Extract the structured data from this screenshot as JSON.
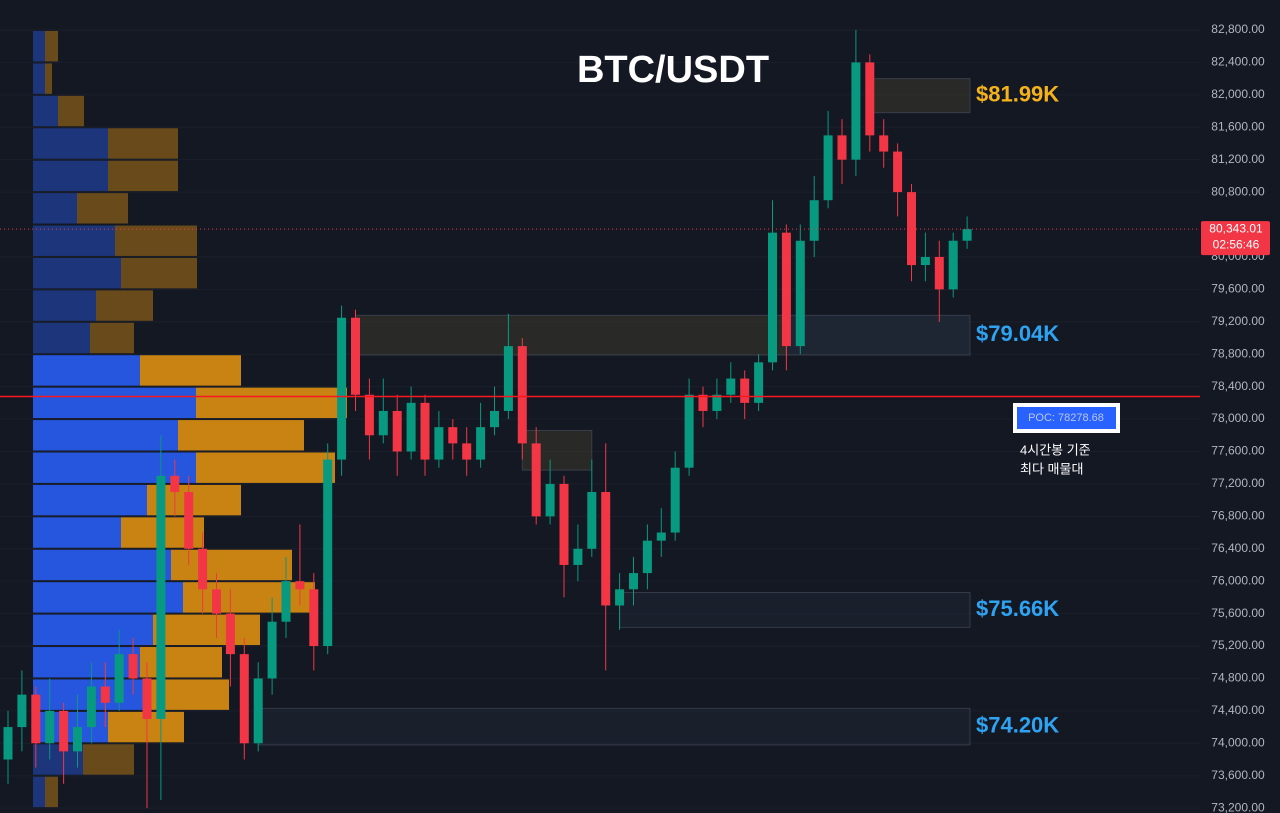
{
  "chart_data": {
    "type": "candlestick",
    "title": "BTC/USDT",
    "ylim": [
      73140,
      83170
    ],
    "yticks": [
      {
        "value": 73200,
        "label": "73,200.00"
      },
      {
        "value": 73600,
        "label": "73,600.00"
      },
      {
        "value": 74000,
        "label": "74,000.00"
      },
      {
        "value": 74400,
        "label": "74,400.00"
      },
      {
        "value": 74800,
        "label": "74,800.00"
      },
      {
        "value": 75200,
        "label": "75,200.00"
      },
      {
        "value": 75600,
        "label": "75,600.00"
      },
      {
        "value": 76000,
        "label": "76,000.00"
      },
      {
        "value": 76400,
        "label": "76,400.00"
      },
      {
        "value": 76800,
        "label": "76,800.00"
      },
      {
        "value": 77200,
        "label": "77,200.00"
      },
      {
        "value": 77600,
        "label": "77,600.00"
      },
      {
        "value": 78000,
        "label": "78,000.00"
      },
      {
        "value": 78400,
        "label": "78,400.00"
      },
      {
        "value": 78800,
        "label": "78,800.00"
      },
      {
        "value": 79200,
        "label": "79,200.00"
      },
      {
        "value": 79600,
        "label": "79,600.00"
      },
      {
        "value": 80000,
        "label": "80,000.00"
      },
      {
        "value": 80800,
        "label": "80,800.00"
      },
      {
        "value": 81200,
        "label": "81,200.00"
      },
      {
        "value": 81600,
        "label": "81,600.00"
      },
      {
        "value": 82000,
        "label": "82,000.00"
      },
      {
        "value": 82400,
        "label": "82,400.00"
      },
      {
        "value": 82800,
        "label": "82,800.00"
      }
    ],
    "grid": true,
    "up_color": "#089981",
    "down_color": "#f23645",
    "candles": {
      "open": [
        73800,
        74200,
        74600,
        74000,
        74400,
        73900,
        74200,
        74700,
        74500,
        75100,
        74800,
        74300,
        77300,
        77100,
        76400,
        75900,
        75600,
        75100,
        74000,
        74800,
        75500,
        76000,
        75900,
        75200,
        77500,
        79250,
        78300,
        77800,
        78100,
        77600,
        78200,
        77500,
        77900,
        77700,
        77500,
        77900,
        78100,
        78900,
        77700,
        76800,
        77200,
        76200,
        76400,
        77100,
        75700,
        75900,
        76100,
        76500,
        76600,
        77400,
        78300,
        78100,
        78300,
        78500,
        78200,
        78700,
        80300,
        78900,
        80200,
        80700,
        81500,
        81200,
        82400,
        81500,
        81300,
        80800,
        79900,
        80000,
        79600,
        80200
      ],
      "high": [
        74400,
        74900,
        74700,
        74800,
        74500,
        74600,
        75000,
        75000,
        75400,
        75300,
        75000,
        77800,
        77500,
        77300,
        76600,
        76100,
        75900,
        75300,
        75000,
        75800,
        76300,
        76700,
        76100,
        77700,
        79400,
        79350,
        78500,
        78500,
        78300,
        78400,
        78300,
        78100,
        78000,
        77900,
        78200,
        78400,
        79300,
        79000,
        77900,
        77500,
        77300,
        76700,
        77500,
        77700,
        76100,
        76300,
        76700,
        76900,
        77600,
        78500,
        78400,
        78500,
        78700,
        78600,
        78800,
        80700,
        80400,
        80400,
        81000,
        81800,
        81700,
        82800,
        82500,
        81700,
        81400,
        80900,
        80300,
        80200,
        80300,
        80500
      ],
      "low": [
        73500,
        73900,
        73700,
        73800,
        73500,
        73700,
        74000,
        74200,
        74400,
        74600,
        73200,
        73300,
        76800,
        76200,
        75600,
        75300,
        74700,
        73800,
        73900,
        74600,
        75300,
        75700,
        74900,
        75100,
        77300,
        78100,
        77500,
        77700,
        77300,
        77500,
        77300,
        77400,
        77500,
        77300,
        77400,
        77800,
        78000,
        77500,
        76700,
        76700,
        75800,
        76000,
        76300,
        74900,
        75400,
        75700,
        75900,
        76300,
        76500,
        77300,
        77900,
        78000,
        78200,
        78000,
        78100,
        78600,
        78600,
        78800,
        80000,
        80600,
        80900,
        81000,
        81300,
        81100,
        80500,
        79700,
        79700,
        79200,
        79500,
        80100
      ],
      "close": [
        74200,
        74600,
        74000,
        74400,
        73900,
        74200,
        74700,
        74500,
        75100,
        74800,
        74300,
        77300,
        77100,
        76400,
        75900,
        75600,
        75100,
        74000,
        74800,
        75500,
        76000,
        75900,
        75200,
        77500,
        79250,
        78300,
        77800,
        78100,
        77600,
        78200,
        77500,
        77900,
        77700,
        77500,
        77900,
        78100,
        78900,
        77700,
        76800,
        77200,
        76200,
        76400,
        77100,
        75700,
        75900,
        76100,
        76500,
        76600,
        77400,
        78300,
        78100,
        78300,
        78500,
        78200,
        78700,
        80300,
        78900,
        80200,
        80700,
        81500,
        81200,
        82400,
        81500,
        81300,
        80800,
        79900,
        80000,
        79600,
        80200,
        80343.01
      ]
    },
    "volume_profile": {
      "bins": [
        82800,
        82400,
        82000,
        81600,
        81200,
        80800,
        80400,
        80000,
        79600,
        79200,
        78800,
        78400,
        78000,
        77600,
        77200,
        76800,
        76400,
        76000,
        75600,
        75200,
        74800,
        74400,
        74000,
        73600,
        73200
      ],
      "buy": [
        12,
        12,
        25,
        75,
        75,
        44,
        82,
        88,
        63,
        57,
        107,
        163,
        145,
        163,
        114,
        88,
        138,
        150,
        120,
        107,
        114,
        75,
        50,
        12
      ],
      "sell": [
        13,
        7,
        26,
        70,
        70,
        51,
        82,
        76,
        57,
        44,
        101,
        151,
        126,
        139,
        94,
        83,
        121,
        132,
        107,
        82,
        82,
        76,
        51,
        13
      ],
      "value_area": [
        74000,
        78800
      ],
      "buy_color": "#2962ff",
      "sell_color": "#e8960f"
    },
    "zones": [
      {
        "label": "$81.99K",
        "low": 81780,
        "high": 82200,
        "start": 62,
        "color": "#f5b21b",
        "fill": "#3a3a2c"
      },
      {
        "low": 78790,
        "high": 79280,
        "start": 25,
        "end": 56,
        "fill": "#3a3a2c"
      },
      {
        "label": "$79.04K",
        "low": 78790,
        "high": 79280,
        "start": 56,
        "color": "#2ea3f2",
        "fill": "#263142"
      },
      {
        "low": 77370,
        "high": 77860,
        "start": 37,
        "end": 42,
        "fill": "#3a3a2c"
      },
      {
        "label": "$75.66K",
        "low": 75430,
        "high": 75860,
        "start": 44,
        "color": "#2ea3f2",
        "fill": "#1f2634"
      },
      {
        "label": "$74.20K",
        "low": 73980,
        "high": 74430,
        "start": 18,
        "color": "#2ea3f2",
        "fill": "#1f2634"
      }
    ],
    "poc": {
      "value": 78278.68,
      "label": "POC: 78278.68",
      "color": "#f7171e"
    },
    "annotations": [
      "4시간봉 기준",
      "최다 매물대"
    ],
    "current_price": {
      "value": 80343.01,
      "label": "80,343.01",
      "countdown": "02:56:46",
      "color": "#f23645"
    }
  }
}
